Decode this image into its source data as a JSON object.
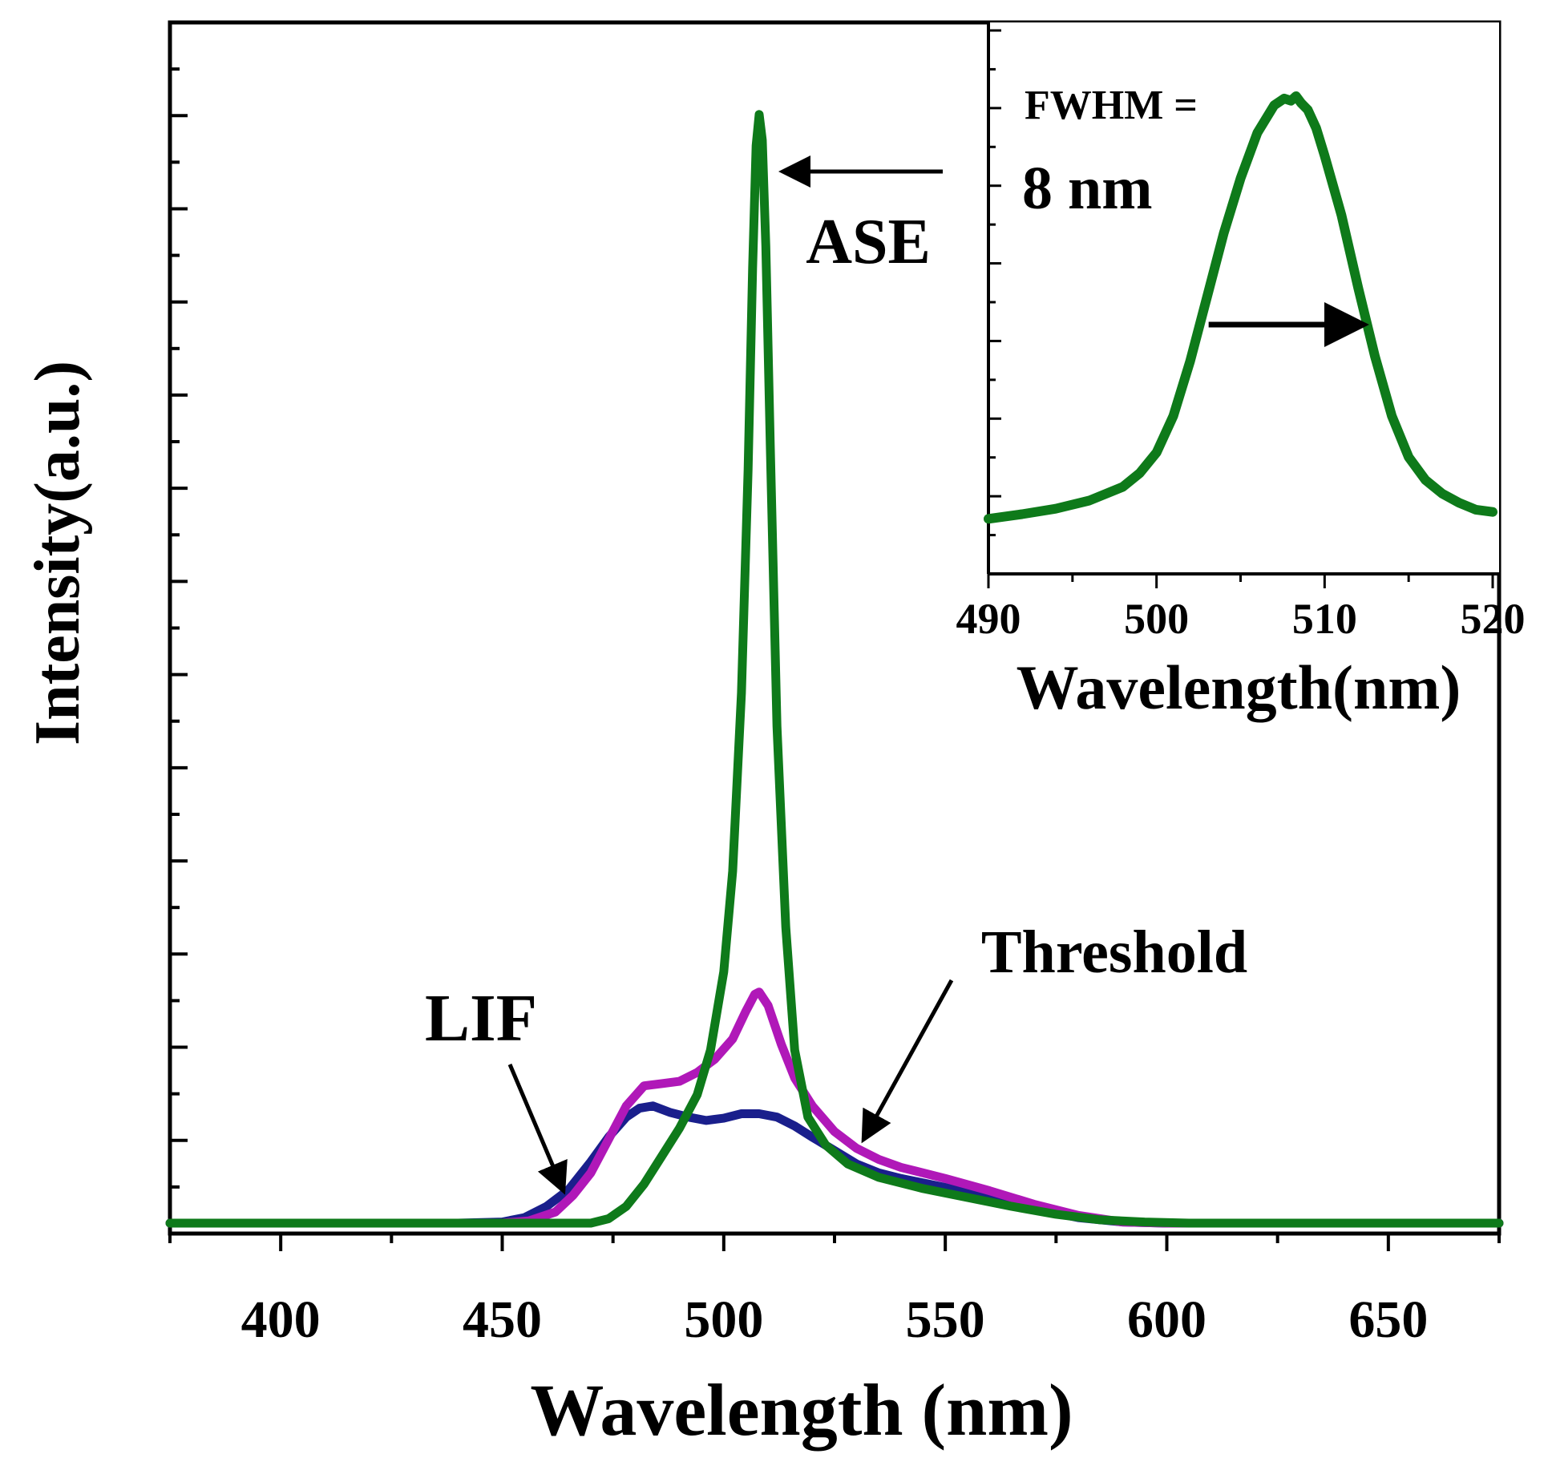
{
  "chart_data": [
    {
      "type": "line",
      "panel": "main",
      "title": "",
      "xlabel": "Wavelength (nm)",
      "ylabel": "Intensity(a.u.)",
      "xlim": [
        375,
        675
      ],
      "ylim": [
        0,
        1.0
      ],
      "x_ticks": [
        400,
        450,
        500,
        550,
        600,
        650
      ],
      "x_tick_labels": [
        "400",
        "450",
        "500",
        "550",
        "600",
        "650"
      ],
      "y_tick_labels_shown": false,
      "series": [
        {
          "name": "LIF",
          "color": "#1a1f8c",
          "x": [
            375,
            440,
            450,
            455,
            460,
            465,
            470,
            474,
            478,
            481,
            484,
            488,
            492,
            496,
            500,
            504,
            508,
            512,
            516,
            520,
            525,
            530,
            535,
            540,
            550,
            560,
            570,
            580,
            590,
            600,
            675
          ],
          "y": [
            0.005,
            0.005,
            0.006,
            0.01,
            0.02,
            0.035,
            0.06,
            0.082,
            0.1,
            0.108,
            0.11,
            0.104,
            0.1,
            0.097,
            0.099,
            0.103,
            0.103,
            0.1,
            0.092,
            0.082,
            0.07,
            0.058,
            0.05,
            0.045,
            0.037,
            0.028,
            0.018,
            0.01,
            0.006,
            0.005,
            0.005
          ]
        },
        {
          "name": "Threshold",
          "color": "#b018b8",
          "x": [
            375,
            450,
            456,
            462,
            466,
            470,
            474,
            478,
            482,
            486,
            490,
            494,
            498,
            502,
            505,
            507,
            508,
            510,
            513,
            516,
            520,
            525,
            530,
            535,
            540,
            550,
            560,
            570,
            580,
            590,
            600,
            675
          ],
          "y": [
            0.005,
            0.005,
            0.007,
            0.015,
            0.03,
            0.05,
            0.08,
            0.11,
            0.128,
            0.13,
            0.132,
            0.14,
            0.152,
            0.17,
            0.195,
            0.21,
            0.212,
            0.2,
            0.165,
            0.135,
            0.11,
            0.087,
            0.072,
            0.062,
            0.055,
            0.045,
            0.034,
            0.022,
            0.012,
            0.006,
            0.005,
            0.005
          ]
        },
        {
          "name": "ASE",
          "color": "#0e7a1a",
          "x": [
            375,
            470,
            474,
            478,
            482,
            486,
            490,
            494,
            497,
            500,
            502,
            504,
            505.5,
            506.5,
            507.3,
            508,
            508.7,
            509.5,
            510.5,
            512,
            514,
            516,
            519,
            523,
            528,
            535,
            545,
            555,
            565,
            575,
            585,
            595,
            605,
            675
          ],
          "y": [
            0.005,
            0.005,
            0.009,
            0.02,
            0.04,
            0.065,
            0.09,
            0.12,
            0.16,
            0.23,
            0.32,
            0.48,
            0.68,
            0.86,
            0.97,
            0.998,
            0.975,
            0.88,
            0.7,
            0.45,
            0.27,
            0.16,
            0.1,
            0.075,
            0.058,
            0.046,
            0.036,
            0.028,
            0.02,
            0.013,
            0.008,
            0.006,
            0.005,
            0.005
          ]
        }
      ],
      "annotations": [
        {
          "text": "ASE",
          "target": "ASE peak",
          "arrow": "left"
        },
        {
          "text": "LIF",
          "target": "LIF curve near 465 nm",
          "arrow": "down"
        },
        {
          "text": "Threshold",
          "target": "Threshold curve near 530 nm",
          "arrow": "down-left"
        }
      ]
    },
    {
      "type": "line",
      "panel": "inset",
      "title": "",
      "xlabel": "Wavelength(nm)",
      "ylabel": "",
      "xlim": [
        490,
        520
      ],
      "ylim": [
        0,
        1.0
      ],
      "x_ticks": [
        490,
        500,
        510,
        520
      ],
      "x_tick_labels": [
        "490",
        "500",
        "510",
        "520"
      ],
      "y_tick_labels_shown": false,
      "series": [
        {
          "name": "ASE",
          "color": "#0e7a1a",
          "x": [
            490,
            492,
            494,
            496,
            498,
            499,
            500,
            501,
            502,
            503,
            504,
            505,
            506,
            507,
            507.6,
            508,
            508.3,
            508.6,
            509,
            509.5,
            510,
            511,
            512,
            513,
            514,
            515,
            516,
            517,
            518,
            519,
            520
          ],
          "y": [
            0.075,
            0.085,
            0.097,
            0.115,
            0.145,
            0.175,
            0.22,
            0.3,
            0.42,
            0.56,
            0.7,
            0.82,
            0.92,
            0.98,
            0.995,
            0.99,
            1.0,
            0.985,
            0.97,
            0.93,
            0.87,
            0.74,
            0.58,
            0.43,
            0.3,
            0.21,
            0.16,
            0.13,
            0.11,
            0.095,
            0.09
          ]
        }
      ],
      "annotations": [
        {
          "text": "FWHM =",
          "line2": "8 nm",
          "arrow": "right",
          "arrow_x_from": 503.1,
          "arrow_x_to": 512.7
        }
      ]
    }
  ]
}
